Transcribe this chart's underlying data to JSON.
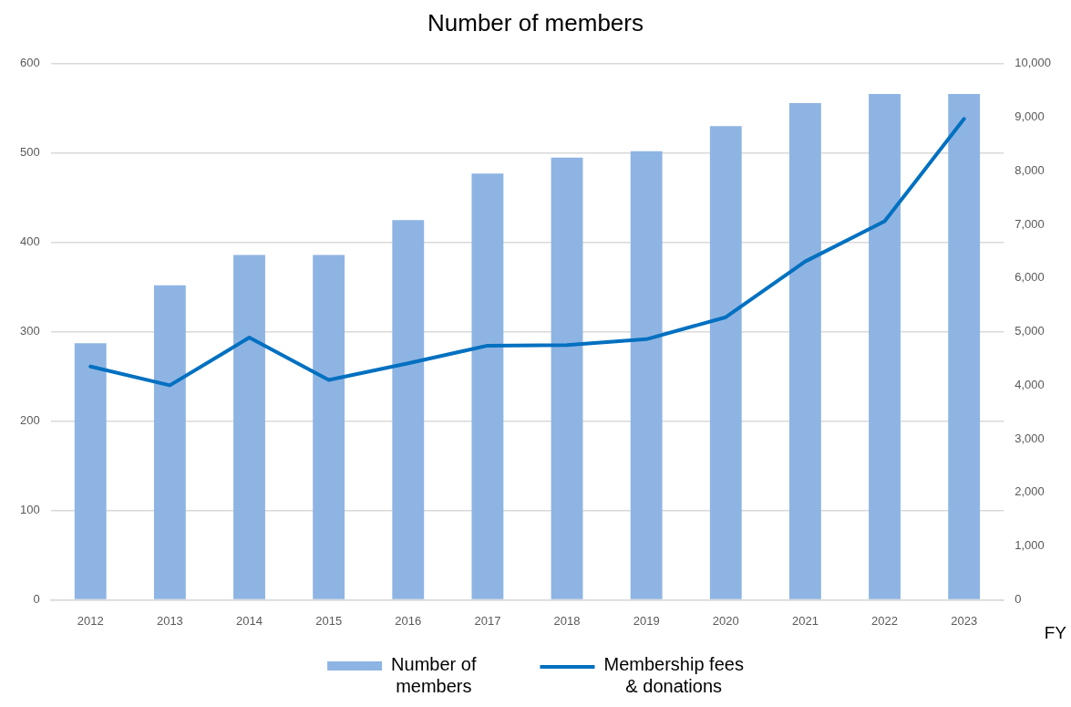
{
  "chart_data": {
    "type": "bar",
    "title": "Number of members",
    "xlabel": "FY",
    "categories": [
      "2012",
      "2013",
      "2014",
      "2015",
      "2016",
      "2017",
      "2018",
      "2019",
      "2020",
      "2021",
      "2022",
      "2023"
    ],
    "series": [
      {
        "name": "Number of members",
        "color": "#8eb4e3",
        "values": [
          287,
          352,
          386,
          386,
          425,
          477,
          495,
          502,
          530,
          556,
          566,
          566
        ]
      },
      {
        "name": "Membership fees & donations",
        "type": "line",
        "axis": "y2",
        "color": "#0070c0",
        "values": [
          4350,
          4000,
          4890,
          4100,
          4410,
          4740,
          4750,
          4860,
          5270,
          6310,
          7060,
          8970
        ]
      }
    ],
    "ylim": [
      0,
      600
    ],
    "yticks": [
      0,
      100,
      200,
      300,
      400,
      500,
      600
    ],
    "y2lim": [
      0,
      10000
    ],
    "y2ticks": [
      0,
      {
        "value": 1000,
        "label": "1,000"
      },
      {
        "value": 2000,
        "label": "2,000"
      },
      {
        "value": 3000,
        "label": "3,000"
      },
      {
        "value": 4000,
        "label": "4,000"
      },
      {
        "value": 5000,
        "label": "5,000"
      },
      {
        "value": 6000,
        "label": "6,000"
      },
      {
        "value": 7000,
        "label": "7,000"
      },
      {
        "value": 8000,
        "label": "8,000"
      },
      {
        "value": 9000,
        "label": "9,000"
      },
      {
        "value": 10000,
        "label": "10,000"
      }
    ],
    "grid": "y",
    "legend": "bottom",
    "marker": "none"
  }
}
